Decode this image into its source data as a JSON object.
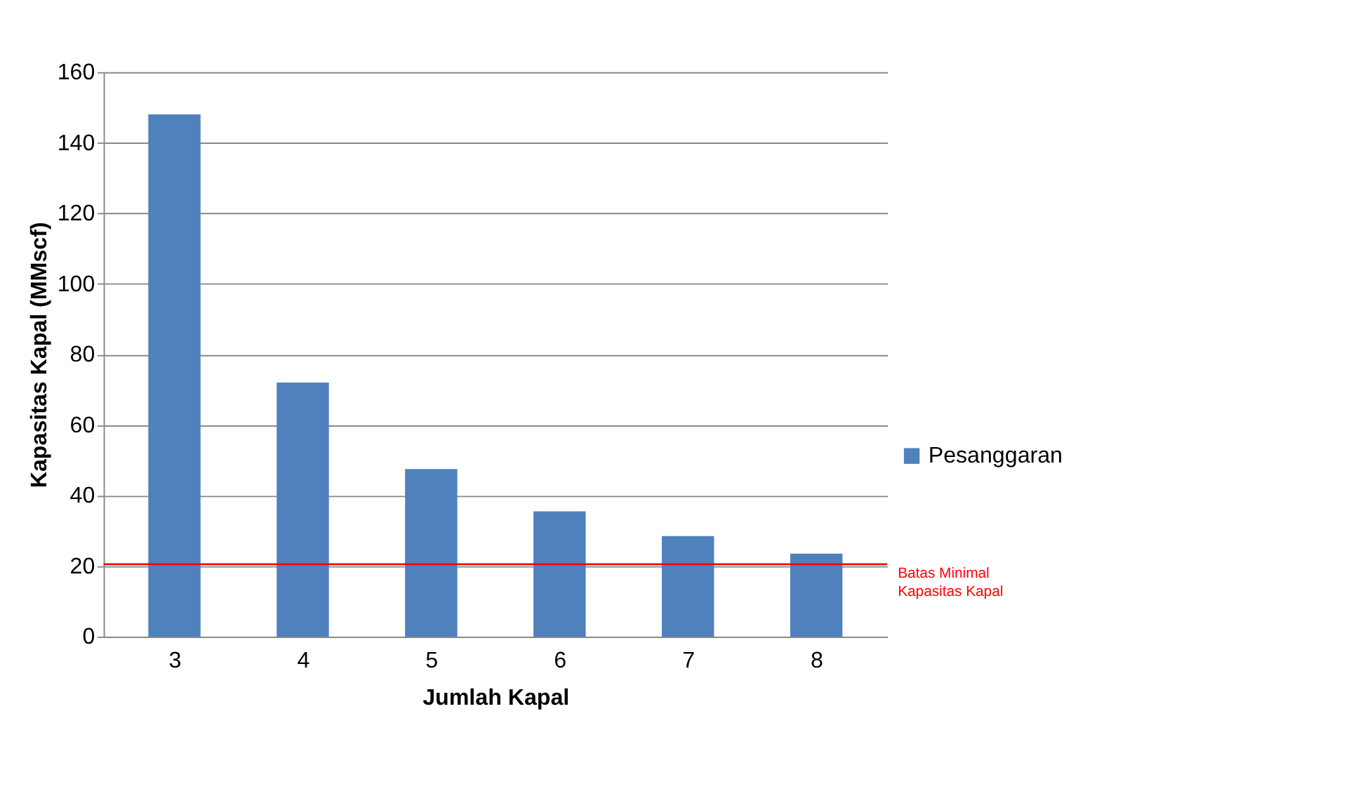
{
  "chart_data": {
    "type": "bar",
    "xlabel": "Jumlah Kapal",
    "ylabel": "Kapasitas Kapal (MMscf)",
    "categories": [
      "3",
      "4",
      "5",
      "6",
      "7",
      "8"
    ],
    "series": [
      {
        "name": "Pesanggaran",
        "color": "#4f81bd",
        "values": [
          148,
          72,
          47.5,
          35.5,
          28.5,
          23.5
        ]
      }
    ],
    "ylim": [
      0,
      160
    ],
    "yticks": [
      0,
      20,
      40,
      60,
      80,
      100,
      120,
      140,
      160
    ],
    "grid": "y",
    "legend": "right",
    "ref_lines": [
      {
        "axis": "y",
        "value": 20.5,
        "label": "Batas Minimal Kapasitas Kapal",
        "color": "#ff0000",
        "line_style": "solid"
      }
    ]
  }
}
